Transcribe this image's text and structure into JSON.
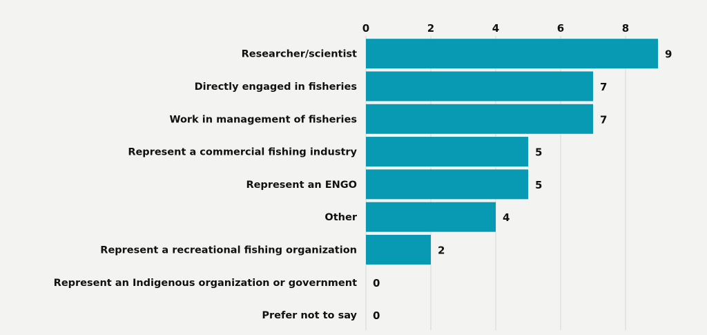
{
  "chart_data": {
    "type": "bar",
    "orientation": "horizontal",
    "categories": [
      "Researcher/scientist",
      "Directly engaged in fisheries",
      "Work in management of fisheries",
      "Represent a commercial fishing industry",
      "Represent an ENGO",
      "Other",
      "Represent a recreational fishing organization",
      "Represent an Indigenous organization or government",
      "Prefer not to say"
    ],
    "values": [
      9,
      7,
      7,
      5,
      5,
      4,
      2,
      0,
      0
    ],
    "xticks": [
      0,
      2,
      4,
      6,
      8
    ],
    "xlim": [
      0,
      10
    ],
    "xaxis_position": "top",
    "grid": "vertical",
    "data_labels": true,
    "colors": {
      "bar": "#0899b3",
      "background": "#f3f3f2",
      "gridline": "#dcdcdc",
      "text": "#111111"
    }
  }
}
